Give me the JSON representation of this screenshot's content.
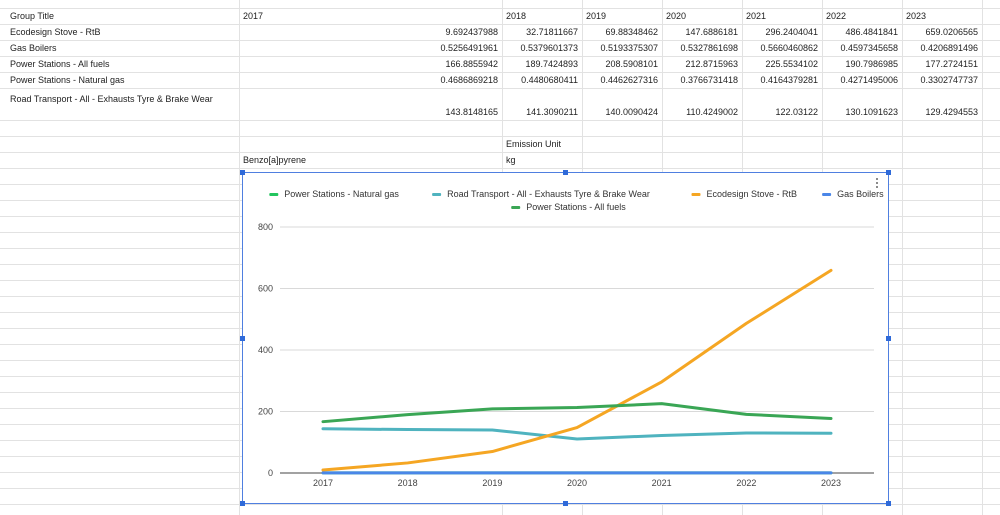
{
  "sheet": {
    "header": {
      "group_title": "Group Title",
      "years": [
        "2017",
        "2018",
        "2019",
        "2020",
        "2021",
        "2022",
        "2023"
      ]
    },
    "rows": [
      {
        "name": "Ecodesign Stove - RtB",
        "values": [
          "9.692437988",
          "32.71811667",
          "69.88348462",
          "147.6886181",
          "296.2404041",
          "486.4841841",
          "659.0206565"
        ]
      },
      {
        "name": "Gas Boilers",
        "values": [
          "0.5256491961",
          "0.5379601373",
          "0.5193375307",
          "0.5327861698",
          "0.5660460862",
          "0.4597345658",
          "0.4206891496"
        ]
      },
      {
        "name": "Power Stations - All fuels",
        "values": [
          "166.8855942",
          "189.7424893",
          "208.5908101",
          "212.8715963",
          "225.5534102",
          "190.7986985",
          "177.2724151"
        ]
      },
      {
        "name": "Power Stations - Natural gas",
        "values": [
          "0.4686869218",
          "0.4480680411",
          "0.4462627316",
          "0.3766731418",
          "0.4164379281",
          "0.4271495006",
          "0.3302747737"
        ]
      },
      {
        "name": "Road Transport - All - Exhausts Tyre & Brake Wear",
        "values": [
          "143.8148165",
          "141.3090211",
          "140.0090424",
          "110.4249002",
          "122.03122",
          "130.1091623",
          "129.4294553"
        ]
      }
    ],
    "pollutant": "Benzo[a]pyrene",
    "emission_unit_label": "Emission Unit",
    "emission_unit": "kg"
  },
  "chart_data": {
    "type": "line",
    "x": [
      "2017",
      "2018",
      "2019",
      "2020",
      "2021",
      "2022",
      "2023"
    ],
    "ylim": [
      0,
      800
    ],
    "yticks": [
      "0",
      "200",
      "400",
      "600",
      "800"
    ],
    "grid": true,
    "legend_position": "top",
    "series": [
      {
        "name": "Power Stations - Natural gas",
        "color": "#22c55e",
        "values": [
          0.4686869218,
          0.4480680411,
          0.4462627316,
          0.3766731418,
          0.4164379281,
          0.4271495006,
          0.3302747737
        ]
      },
      {
        "name": "Road Transport - All - Exhausts Tyre & Brake Wear",
        "color": "#4fb3bf",
        "values": [
          143.8148165,
          141.3090211,
          140.0090424,
          110.4249002,
          122.03122,
          130.1091623,
          129.4294553
        ]
      },
      {
        "name": "Ecodesign Stove - RtB",
        "color": "#f5a623",
        "values": [
          9.692437988,
          32.71811667,
          69.88348462,
          147.6886181,
          296.2404041,
          486.4841841,
          659.0206565
        ]
      },
      {
        "name": "Gas Boilers",
        "color": "#4a86e8",
        "values": [
          0.5256491961,
          0.5379601373,
          0.5193375307,
          0.5327861698,
          0.5660460862,
          0.4597345658,
          0.4206891496
        ]
      },
      {
        "name": "Power Stations - All fuels",
        "color": "#3aa655",
        "values": [
          166.8855942,
          189.7424893,
          208.5908101,
          212.8715963,
          225.5534102,
          190.7986985,
          177.2724151
        ]
      }
    ]
  }
}
